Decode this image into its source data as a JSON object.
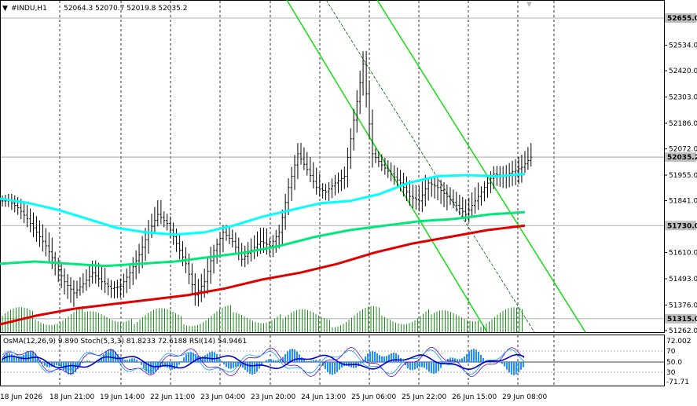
{
  "header": {
    "symbol": "#INDU,H1",
    "ohlc": "52064.3 52070.7 52019.8 52035.2"
  },
  "price_axis": {
    "ticks": [
      "52534.0",
      "52420.0",
      "52303.0",
      "52186.0",
      "52072.0",
      "51955.0",
      "51841.0",
      "51610.0",
      "51493.0",
      "51376.0",
      "51262.0"
    ],
    "markers": [
      {
        "value": "52655.0",
        "color": "#c0c0c0"
      },
      {
        "value": "52035.2",
        "color": "#c0c0c0"
      },
      {
        "value": "51730.0",
        "color": "#c0c0c0"
      },
      {
        "value": "51315.0",
        "color": "#c0c0c0"
      }
    ]
  },
  "indicator": {
    "label": "OsMA(12,26,9) 9.890  Stoch(5,3,3) 81.8233 72.6188  RSI(14) 54.9461",
    "ticks": [
      "72.002",
      "70",
      "50.0",
      "30",
      "-71.71"
    ]
  },
  "time_axis": {
    "labels": [
      "18 Jun 2026",
      "18 Jun 21:00",
      "19 Jun 14:00",
      "22 Jun 11:00",
      "23 Jun 04:00",
      "23 Jun 20:00",
      "24 Jun 13:00",
      "25 Jun 06:00",
      "25 Jun 22:00",
      "26 Jun 15:00",
      "29 Jun 08:00"
    ]
  },
  "chart_data": {
    "type": "line",
    "instrument": "#INDU",
    "timeframe": "H1",
    "price_range": [
      51262.0,
      52655.0
    ],
    "last_price": 52035.2,
    "levels": [
      52655.0,
      51730.0,
      51315.0
    ],
    "series": [
      {
        "color": "#00ffff",
        "values": [
          51850,
          51830,
          51800,
          51760,
          51720,
          51700,
          51690,
          51700,
          51730,
          51770,
          51800,
          51830,
          51840,
          51870,
          51920,
          51950,
          51955,
          51950,
          51960
        ]
      },
      {
        "color": "#00e87a",
        "values": [
          51560,
          51570,
          51560,
          51550,
          51560,
          51570,
          51590,
          51610,
          51640,
          51680,
          51710,
          51730,
          51750,
          51760,
          51780,
          51790
        ]
      },
      {
        "color": "#e00000",
        "values": [
          51290,
          51330,
          51360,
          51380,
          51400,
          51420,
          51450,
          51490,
          51520,
          51560,
          51610,
          51650,
          51680,
          51710,
          51730
        ]
      }
    ],
    "candles_close": [
      51840,
      51810,
      51760,
      51700,
      51640,
      51560,
      51480,
      51430,
      51470,
      51520,
      51480,
      51450,
      51460,
      51520,
      51600,
      51700,
      51780,
      51740,
      51650,
      51560,
      51420,
      51480,
      51620,
      51700,
      51660,
      51580,
      51620,
      51660,
      51640,
      51700,
      51900,
      52050,
      51980,
      51900,
      51880,
      51920,
      51950,
      52200,
      52450,
      52050,
      52000,
      51960,
      51920,
      51860,
      51840,
      51920,
      51900,
      51860,
      51820,
      51780,
      51840,
      51900,
      51960,
      51950,
      51970,
      51990,
      52035
    ]
  }
}
